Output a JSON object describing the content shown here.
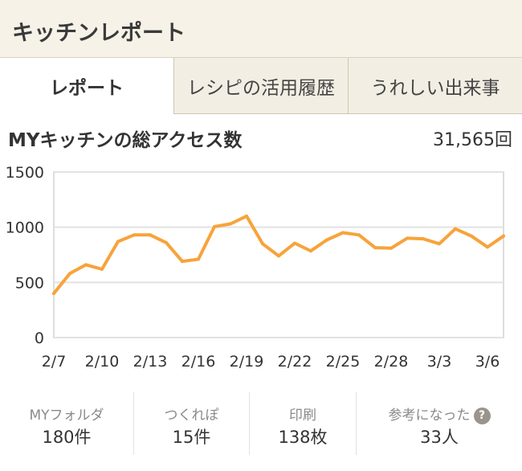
{
  "header": {
    "title": "キッチンレポート"
  },
  "tabs": [
    {
      "label": "レポート",
      "active": true
    },
    {
      "label": "レシピの活用履歴",
      "active": false
    },
    {
      "label": "うれしい出来事",
      "active": false
    }
  ],
  "summary": {
    "title": "MYキッチンの総アクセス数",
    "total": "31,565回"
  },
  "chart_data": {
    "type": "line",
    "title": "",
    "xlabel": "",
    "ylabel": "",
    "ylim": [
      0,
      1500
    ],
    "yticks": [
      "0",
      "500",
      "1000",
      "1500"
    ],
    "xtick_labels": [
      "2/7",
      "2/10",
      "2/13",
      "2/16",
      "2/19",
      "2/22",
      "2/25",
      "2/28",
      "3/3",
      "3/6"
    ],
    "x": [
      "2/7",
      "2/8",
      "2/9",
      "2/10",
      "2/11",
      "2/12",
      "2/13",
      "2/14",
      "2/15",
      "2/16",
      "2/17",
      "2/18",
      "2/19",
      "2/20",
      "2/21",
      "2/22",
      "2/23",
      "2/24",
      "2/25",
      "2/26",
      "2/27",
      "2/28",
      "3/1",
      "3/2",
      "3/3",
      "3/4",
      "3/5",
      "3/6",
      "3/7"
    ],
    "series": [
      {
        "values": [
          400,
          580,
          660,
          620,
          870,
          930,
          930,
          860,
          690,
          710,
          1005,
          1030,
          1100,
          850,
          740,
          855,
          785,
          885,
          950,
          930,
          815,
          810,
          900,
          895,
          850,
          985,
          920,
          820,
          920
        ]
      }
    ],
    "line_color": "#f7a33a",
    "grid": true
  },
  "stats": [
    {
      "label": "MYフォルダ",
      "value": "180件"
    },
    {
      "label": "つくれぽ",
      "value": "15件"
    },
    {
      "label": "印刷",
      "value": "138枚"
    },
    {
      "label": "参考になった",
      "value": "33人",
      "icon": "help-icon"
    }
  ]
}
